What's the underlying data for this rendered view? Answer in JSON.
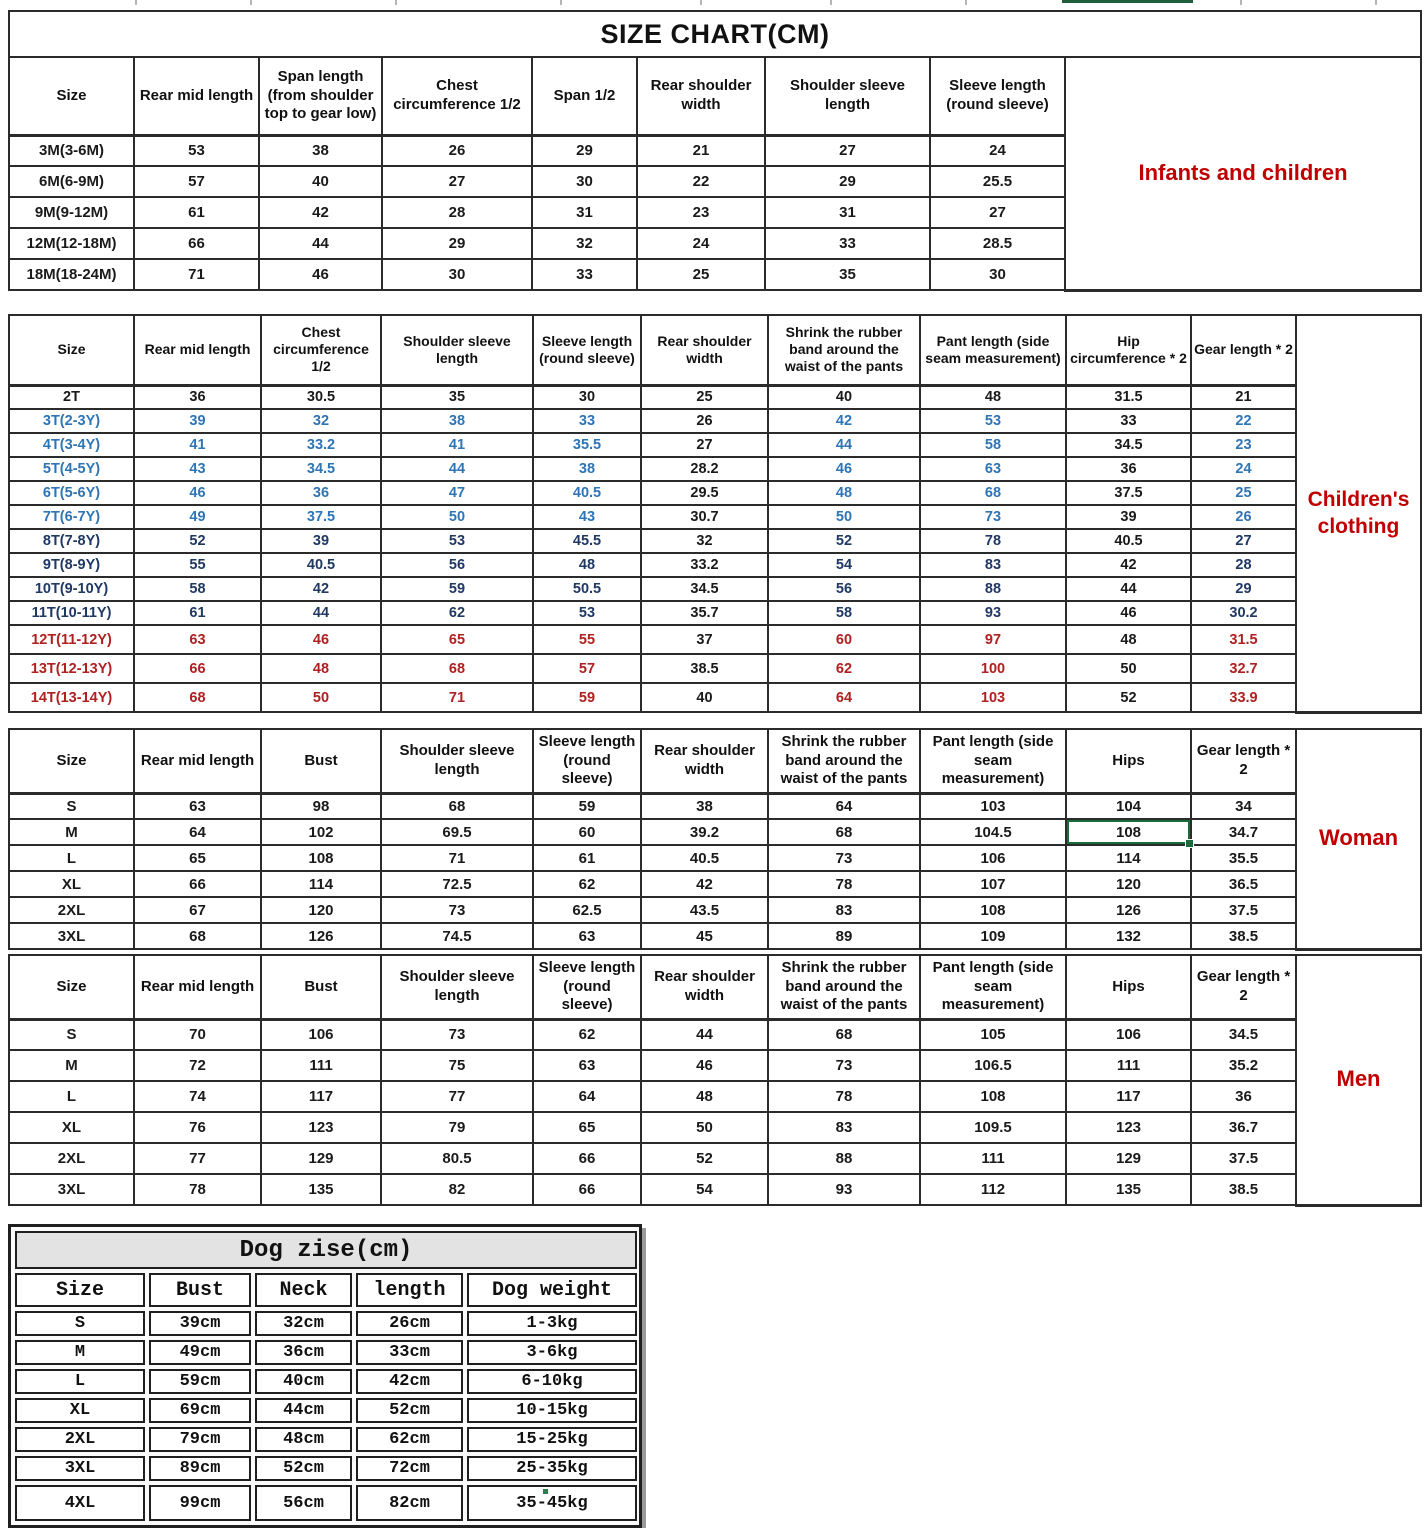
{
  "page_title": "SIZE CHART(CM)",
  "colors": {
    "label_red": "#c00000",
    "value_blue": "#2e75b6",
    "value_navy": "#1f3864",
    "value_red": "#b02020",
    "selection_green": "#1a6b3c"
  },
  "tables": {
    "infants": {
      "label": "Infants and children",
      "headers": [
        "Size",
        "Rear mid length",
        "Span length (from shoulder top to gear low)",
        "Chest circumference 1/2",
        "Span 1/2",
        "Rear shoulder width",
        "Shoulder sleeve length",
        "Sleeve length (round sleeve)"
      ],
      "rows": [
        {
          "size": "3M(3-6M)",
          "color": "black",
          "values": [
            "53",
            "38",
            "26",
            "29",
            "21",
            "27",
            "24"
          ]
        },
        {
          "size": "6M(6-9M)",
          "color": "black",
          "values": [
            "57",
            "40",
            "27",
            "30",
            "22",
            "29",
            "25.5"
          ]
        },
        {
          "size": "9M(9-12M)",
          "color": "black",
          "values": [
            "61",
            "42",
            "28",
            "31",
            "23",
            "31",
            "27"
          ]
        },
        {
          "size": "12M(12-18M)",
          "color": "black",
          "values": [
            "66",
            "44",
            "29",
            "32",
            "24",
            "33",
            "28.5"
          ]
        },
        {
          "size": "18M(18-24M)",
          "color": "black",
          "values": [
            "71",
            "46",
            "30",
            "33",
            "25",
            "35",
            "30"
          ]
        }
      ]
    },
    "children": {
      "label": "Children's clothing",
      "headers": [
        "Size",
        "Rear mid length",
        "Chest circumference 1/2",
        "Shoulder sleeve length",
        "Sleeve length (round sleeve)",
        "Rear shoulder width",
        "Shrink the rubber band around the waist of the pants",
        "Pant length (side seam measurement)",
        "Hip circumference * 2",
        "Gear length * 2"
      ],
      "black_columns": [
        4,
        7
      ],
      "rows": [
        {
          "size": "2T",
          "color": "black",
          "values": [
            "36",
            "30.5",
            "35",
            "30",
            "25",
            "40",
            "48",
            "31.5",
            "21"
          ]
        },
        {
          "size": "3T(2-3Y)",
          "color": "blue",
          "values": [
            "39",
            "32",
            "38",
            "33",
            "26",
            "42",
            "53",
            "33",
            "22"
          ]
        },
        {
          "size": "4T(3-4Y)",
          "color": "blue",
          "values": [
            "41",
            "33.2",
            "41",
            "35.5",
            "27",
            "44",
            "58",
            "34.5",
            "23"
          ]
        },
        {
          "size": "5T(4-5Y)",
          "color": "blue",
          "values": [
            "43",
            "34.5",
            "44",
            "38",
            "28.2",
            "46",
            "63",
            "36",
            "24"
          ]
        },
        {
          "size": "6T(5-6Y)",
          "color": "blue",
          "values": [
            "46",
            "36",
            "47",
            "40.5",
            "29.5",
            "48",
            "68",
            "37.5",
            "25"
          ]
        },
        {
          "size": "7T(6-7Y)",
          "color": "blue",
          "values": [
            "49",
            "37.5",
            "50",
            "43",
            "30.7",
            "50",
            "73",
            "39",
            "26"
          ]
        },
        {
          "size": "8T(7-8Y)",
          "color": "navy",
          "values": [
            "52",
            "39",
            "53",
            "45.5",
            "32",
            "52",
            "78",
            "40.5",
            "27"
          ]
        },
        {
          "size": "9T(8-9Y)",
          "color": "navy",
          "values": [
            "55",
            "40.5",
            "56",
            "48",
            "33.2",
            "54",
            "83",
            "42",
            "28"
          ]
        },
        {
          "size": "10T(9-10Y)",
          "color": "navy",
          "values": [
            "58",
            "42",
            "59",
            "50.5",
            "34.5",
            "56",
            "88",
            "44",
            "29"
          ]
        },
        {
          "size": "11T(10-11Y)",
          "color": "navy",
          "values": [
            "61",
            "44",
            "62",
            "53",
            "35.7",
            "58",
            "93",
            "46",
            "30.2"
          ]
        },
        {
          "size": "12T(11-12Y)",
          "color": "red",
          "values": [
            "63",
            "46",
            "65",
            "55",
            "37",
            "60",
            "97",
            "48",
            "31.5"
          ]
        },
        {
          "size": "13T(12-13Y)",
          "color": "red",
          "values": [
            "66",
            "48",
            "68",
            "57",
            "38.5",
            "62",
            "100",
            "50",
            "32.7"
          ]
        },
        {
          "size": "14T(13-14Y)",
          "color": "red",
          "values": [
            "68",
            "50",
            "71",
            "59",
            "40",
            "64",
            "103",
            "52",
            "33.9"
          ]
        }
      ]
    },
    "woman": {
      "label": "Woman",
      "headers": [
        "Size",
        "Rear mid length",
        "Bust",
        "Shoulder sleeve length",
        "Sleeve length (round sleeve)",
        "Rear shoulder width",
        "Shrink the rubber band around the waist of the pants",
        "Pant length (side seam measurement)",
        "Hips",
        "Gear length * 2"
      ],
      "selected_cell": {
        "row": 1,
        "col": 7
      },
      "rows": [
        {
          "size": "S",
          "color": "black",
          "values": [
            "63",
            "98",
            "68",
            "59",
            "38",
            "64",
            "103",
            "104",
            "34"
          ]
        },
        {
          "size": "M",
          "color": "black",
          "values": [
            "64",
            "102",
            "69.5",
            "60",
            "39.2",
            "68",
            "104.5",
            "108",
            "34.7"
          ]
        },
        {
          "size": "L",
          "color": "black",
          "values": [
            "65",
            "108",
            "71",
            "61",
            "40.5",
            "73",
            "106",
            "114",
            "35.5"
          ]
        },
        {
          "size": "XL",
          "color": "black",
          "values": [
            "66",
            "114",
            "72.5",
            "62",
            "42",
            "78",
            "107",
            "120",
            "36.5"
          ]
        },
        {
          "size": "2XL",
          "color": "black",
          "values": [
            "67",
            "120",
            "73",
            "62.5",
            "43.5",
            "83",
            "108",
            "126",
            "37.5"
          ]
        },
        {
          "size": "3XL",
          "color": "black",
          "values": [
            "68",
            "126",
            "74.5",
            "63",
            "45",
            "89",
            "109",
            "132",
            "38.5"
          ]
        }
      ]
    },
    "men": {
      "label": "Men",
      "headers": [
        "Size",
        "Rear mid length",
        "Bust",
        "Shoulder sleeve length",
        "Sleeve length (round sleeve)",
        "Rear shoulder width",
        "Shrink the rubber band around the waist of the pants",
        "Pant length (side seam measurement)",
        "Hips",
        "Gear length * 2"
      ],
      "rows": [
        {
          "size": "S",
          "color": "black",
          "values": [
            "70",
            "106",
            "73",
            "62",
            "44",
            "68",
            "105",
            "106",
            "34.5"
          ]
        },
        {
          "size": "M",
          "color": "black",
          "values": [
            "72",
            "111",
            "75",
            "63",
            "46",
            "73",
            "106.5",
            "111",
            "35.2"
          ]
        },
        {
          "size": "L",
          "color": "black",
          "values": [
            "74",
            "117",
            "77",
            "64",
            "48",
            "78",
            "108",
            "117",
            "36"
          ]
        },
        {
          "size": "XL",
          "color": "black",
          "values": [
            "76",
            "123",
            "79",
            "65",
            "50",
            "83",
            "109.5",
            "123",
            "36.7"
          ]
        },
        {
          "size": "2XL",
          "color": "black",
          "values": [
            "77",
            "129",
            "80.5",
            "66",
            "52",
            "88",
            "111",
            "129",
            "37.5"
          ]
        },
        {
          "size": "3XL",
          "color": "black",
          "values": [
            "78",
            "135",
            "82",
            "66",
            "54",
            "93",
            "112",
            "135",
            "38.5"
          ]
        }
      ]
    },
    "dog": {
      "title": "Dog zise(cm)",
      "headers": [
        "Size",
        "Bust",
        "Neck",
        "length",
        "Dog weight"
      ],
      "rows": [
        {
          "size": "S",
          "values": [
            "39cm",
            "32cm",
            "26cm",
            "1-3kg"
          ]
        },
        {
          "size": "M",
          "values": [
            "49cm",
            "36cm",
            "33cm",
            "3-6kg"
          ]
        },
        {
          "size": "L",
          "values": [
            "59cm",
            "40cm",
            "42cm",
            "6-10kg"
          ]
        },
        {
          "size": "XL",
          "values": [
            "69cm",
            "44cm",
            "52cm",
            "10-15kg"
          ]
        },
        {
          "size": "2XL",
          "values": [
            "79cm",
            "48cm",
            "62cm",
            "15-25kg"
          ]
        },
        {
          "size": "3XL",
          "values": [
            "89cm",
            "52cm",
            "72cm",
            "25-35kg"
          ]
        },
        {
          "size": "4XL",
          "values": [
            "99cm",
            "56cm",
            "82cm",
            "35-45kg"
          ]
        }
      ]
    }
  }
}
